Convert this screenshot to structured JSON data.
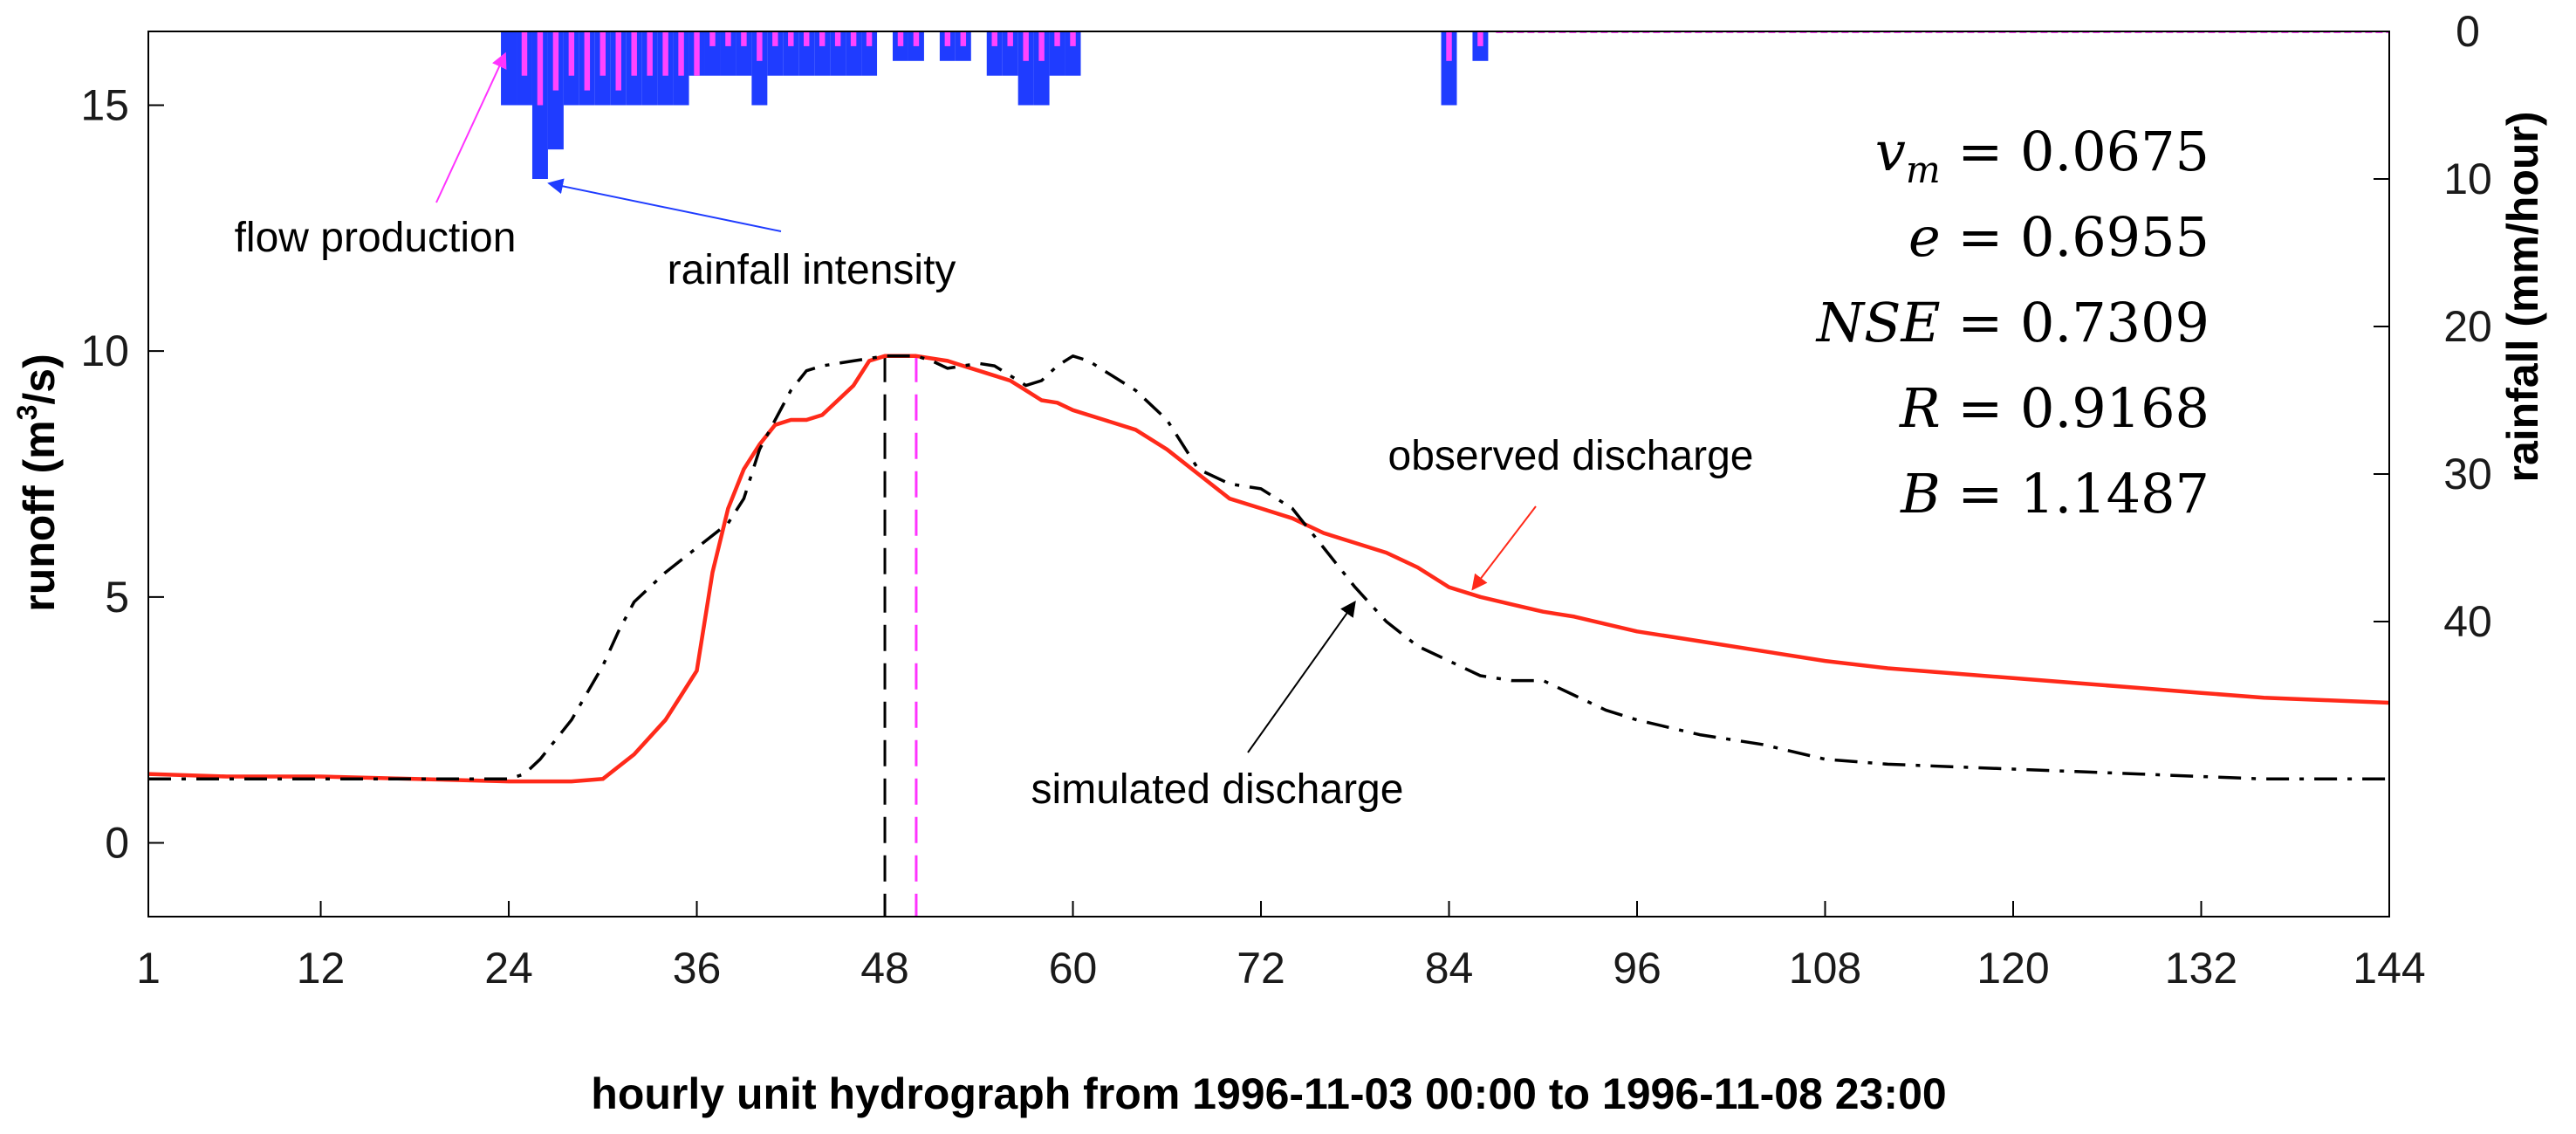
{
  "chart_data": {
    "type": "line",
    "title": "",
    "xlabel": "hourly unit hydrograph from 1996-11-03 00:00 to 1996-11-08 23:00",
    "ylabel_left_prefix": "runoff (m",
    "ylabel_left_sup": "3",
    "ylabel_left_suffix": "/s)",
    "ylabel_right": "rainfall (mm/hour)",
    "xlim": [
      1,
      144
    ],
    "ylim_left": [
      -1.5,
      16.5
    ],
    "ylim_right_inverted": [
      0,
      60
    ],
    "xticks": [
      1,
      12,
      24,
      36,
      48,
      60,
      72,
      84,
      96,
      108,
      120,
      132,
      144
    ],
    "yticks_left": [
      0,
      5,
      10,
      15
    ],
    "yticks_right": [
      0,
      10,
      20,
      30,
      40
    ],
    "series": [
      {
        "name": "observed discharge",
        "color": "#ff2a1a",
        "style": "solid",
        "x": [
          1,
          6,
          12,
          18,
          24,
          26,
          28,
          30,
          32,
          34,
          35,
          36,
          37,
          38,
          39,
          40,
          41,
          42,
          43,
          44,
          45,
          46,
          47,
          48,
          49,
          50,
          51,
          52,
          53,
          54,
          55,
          56,
          57,
          58,
          59,
          60,
          62,
          64,
          66,
          68,
          70,
          72,
          74,
          76,
          78,
          80,
          82,
          84,
          86,
          88,
          90,
          92,
          96,
          100,
          104,
          108,
          112,
          116,
          120,
          124,
          128,
          132,
          136,
          140,
          144
        ],
        "y": [
          1.4,
          1.35,
          1.35,
          1.3,
          1.25,
          1.25,
          1.25,
          1.3,
          1.8,
          2.5,
          3.0,
          3.5,
          5.5,
          6.8,
          7.6,
          8.1,
          8.5,
          8.6,
          8.6,
          8.7,
          9.0,
          9.3,
          9.8,
          9.9,
          9.9,
          9.9,
          9.85,
          9.8,
          9.7,
          9.6,
          9.5,
          9.4,
          9.2,
          9.0,
          8.95,
          8.8,
          8.6,
          8.4,
          8.0,
          7.5,
          7.0,
          6.8,
          6.6,
          6.3,
          6.1,
          5.9,
          5.6,
          5.2,
          5.0,
          4.85,
          4.7,
          4.6,
          4.3,
          4.1,
          3.9,
          3.7,
          3.55,
          3.45,
          3.35,
          3.25,
          3.15,
          3.05,
          2.95,
          2.9,
          2.85
        ]
      },
      {
        "name": "simulated discharge",
        "color": "#000000",
        "style": "dashdot",
        "x": [
          1,
          6,
          12,
          18,
          24,
          25,
          26,
          28,
          30,
          31,
          32,
          34,
          36,
          38,
          39,
          40,
          42,
          43,
          44,
          46,
          47,
          48,
          49,
          50,
          51,
          52,
          53,
          54,
          55,
          56,
          57,
          58,
          59,
          60,
          61,
          62,
          64,
          66,
          68,
          70,
          72,
          74,
          76,
          78,
          80,
          82,
          84,
          86,
          88,
          90,
          92,
          94,
          96,
          100,
          104,
          108,
          112,
          116,
          120,
          124,
          128,
          132,
          136,
          140,
          144
        ],
        "y": [
          1.3,
          1.3,
          1.3,
          1.3,
          1.3,
          1.4,
          1.7,
          2.5,
          3.6,
          4.3,
          4.9,
          5.5,
          6.0,
          6.5,
          7.0,
          8.0,
          9.2,
          9.6,
          9.7,
          9.8,
          9.85,
          9.9,
          9.9,
          9.9,
          9.8,
          9.65,
          9.7,
          9.75,
          9.7,
          9.5,
          9.3,
          9.4,
          9.7,
          9.9,
          9.8,
          9.6,
          9.2,
          8.6,
          7.6,
          7.3,
          7.2,
          6.8,
          6.0,
          5.2,
          4.5,
          4.0,
          3.7,
          3.4,
          3.3,
          3.3,
          3.0,
          2.7,
          2.5,
          2.2,
          2.0,
          1.7,
          1.6,
          1.55,
          1.5,
          1.45,
          1.4,
          1.35,
          1.3,
          1.3,
          1.3
        ]
      }
    ],
    "vertical_markers": [
      {
        "x": 48,
        "color": "#000000",
        "style": "dashed"
      },
      {
        "x": 50,
        "color": "#ff33ff",
        "style": "dashed"
      }
    ],
    "rainfall_intensity": {
      "name": "rainfall intensity",
      "color": "#1f3cff",
      "x": [
        24,
        25,
        26,
        27,
        28,
        29,
        30,
        31,
        32,
        33,
        34,
        35,
        36,
        37,
        38,
        39,
        40,
        41,
        42,
        43,
        44,
        45,
        46,
        47,
        49,
        50,
        52,
        53,
        55,
        56,
        57,
        58,
        59,
        60,
        84,
        86
      ],
      "y": [
        5,
        5,
        10,
        8,
        5,
        5,
        5,
        5,
        5,
        5,
        5,
        5,
        3,
        3,
        3,
        3,
        5,
        3,
        3,
        3,
        3,
        3,
        3,
        3,
        2,
        2,
        2,
        2,
        3,
        3,
        5,
        5,
        3,
        3,
        5,
        2
      ]
    },
    "flow_production": {
      "name": "flow production",
      "color": "#ff44ff",
      "x": [
        24,
        25,
        26,
        27,
        28,
        29,
        30,
        31,
        32,
        33,
        34,
        35,
        36,
        37,
        38,
        39,
        40,
        41,
        42,
        43,
        44,
        45,
        46,
        47,
        49,
        50,
        52,
        53,
        55,
        56,
        57,
        58,
        59,
        60,
        84,
        86
      ],
      "y": [
        0,
        3,
        5,
        4,
        3,
        4,
        3,
        4,
        3,
        3,
        3,
        3,
        3,
        1,
        1,
        1,
        2,
        1,
        1,
        1,
        1,
        1,
        1,
        1,
        1,
        1,
        1,
        1,
        1,
        1,
        2,
        2,
        1,
        1,
        2,
        1
      ]
    },
    "statistics": [
      {
        "sym": "v",
        "sub": "m",
        "value": "= 0.0675"
      },
      {
        "sym": "e",
        "sub": "",
        "value": "= 0.6955"
      },
      {
        "sym": "NSE",
        "sub": "",
        "value": "= 0.7309"
      },
      {
        "sym": "R",
        "sub": "",
        "value": "= 0.9168"
      },
      {
        "sym": "B",
        "sub": "",
        "value": "= 1.1487"
      }
    ],
    "annotations": {
      "flow_production": "flow production",
      "rainfall_intensity": "rainfall intensity",
      "observed": "observed discharge",
      "simulated": "simulated discharge"
    }
  }
}
